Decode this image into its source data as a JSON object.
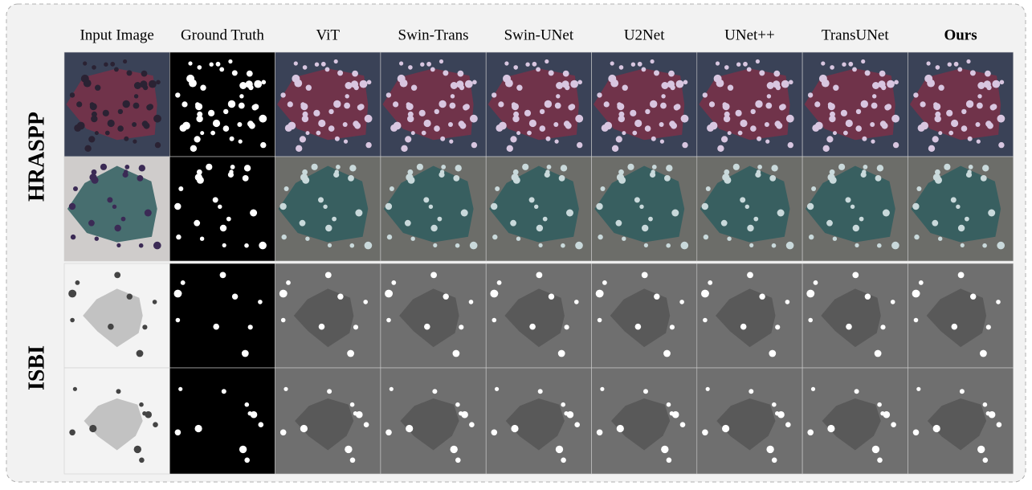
{
  "columns": [
    "Input Image",
    "Ground Truth",
    "ViT",
    "Swin-Trans",
    "Swin-UNet",
    "U2Net",
    "UNet++",
    "TransUNet",
    "Ours"
  ],
  "row_groups": [
    "HRASPP",
    "ISBI"
  ]
}
